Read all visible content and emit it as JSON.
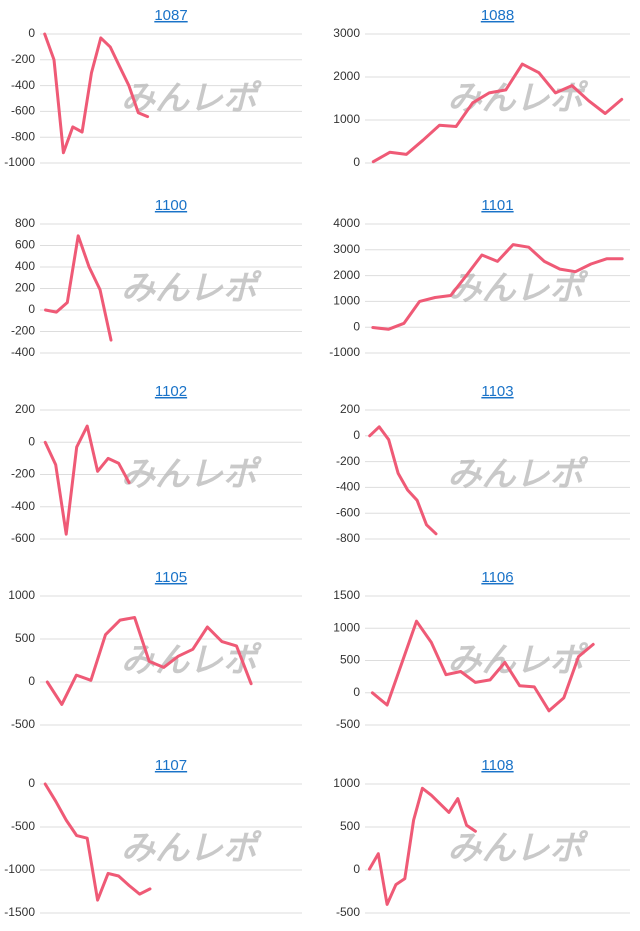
{
  "chart_data": [
    {
      "type": "line",
      "title": "1087",
      "watermark": "みんレポ",
      "color": "#ef5a76",
      "grid": true,
      "ylim": [
        -1000,
        0
      ],
      "yticks": [
        0,
        -200,
        -400,
        -600,
        -800,
        -1000
      ],
      "values": [
        0,
        -200,
        -920,
        -720,
        -760,
        -300,
        -30,
        -100,
        -250,
        -400,
        -610,
        -640,
        null,
        null,
        null,
        null,
        null,
        null,
        null,
        null,
        null,
        null,
        null,
        null,
        null,
        null,
        null,
        null
      ]
    },
    {
      "type": "line",
      "title": "1088",
      "watermark": "みんレポ",
      "color": "#ef5a76",
      "grid": true,
      "ylim": [
        0,
        3000
      ],
      "yticks": [
        0,
        1000,
        2000,
        3000
      ],
      "values": [
        30,
        250,
        200,
        530,
        880,
        850,
        1400,
        1630,
        1700,
        2300,
        2100,
        1630,
        1800,
        1450,
        1150,
        1480
      ]
    },
    {
      "type": "line",
      "title": "1100",
      "watermark": "みんレポ",
      "color": "#ef5a76",
      "grid": true,
      "ylim": [
        -400,
        800
      ],
      "yticks": [
        800,
        600,
        400,
        200,
        0,
        -200,
        -400
      ],
      "values": [
        0,
        -20,
        70,
        690,
        400,
        190,
        -280,
        null,
        null,
        null,
        null,
        null,
        null,
        null,
        null,
        null,
        null,
        null,
        null,
        null,
        null,
        null,
        null,
        null
      ]
    },
    {
      "type": "line",
      "title": "1101",
      "watermark": "みんレポ",
      "color": "#ef5a76",
      "grid": true,
      "ylim": [
        -1000,
        4000
      ],
      "yticks": [
        4000,
        3000,
        2000,
        1000,
        0,
        -1000
      ],
      "values": [
        -10,
        -80,
        150,
        1000,
        1150,
        1230,
        2000,
        2800,
        2550,
        3200,
        3100,
        2550,
        2250,
        2150,
        2450,
        2650,
        2650
      ]
    },
    {
      "type": "line",
      "title": "1102",
      "watermark": "みんレポ",
      "color": "#ef5a76",
      "grid": true,
      "ylim": [
        -600,
        200
      ],
      "yticks": [
        200,
        0,
        -200,
        -400,
        -600
      ],
      "values": [
        0,
        -140,
        -570,
        -30,
        100,
        -180,
        -100,
        -130,
        -250,
        null,
        null,
        null,
        null,
        null,
        null,
        null,
        null,
        null,
        null,
        null,
        null,
        null,
        null,
        null,
        null
      ]
    },
    {
      "type": "line",
      "title": "1103",
      "watermark": "みんレポ",
      "color": "#ef5a76",
      "grid": true,
      "ylim": [
        -800,
        200
      ],
      "yticks": [
        200,
        0,
        -200,
        -400,
        -600,
        -800
      ],
      "values": [
        0,
        70,
        -30,
        -290,
        -420,
        -500,
        -690,
        -760,
        null,
        null,
        null,
        null,
        null,
        null,
        null,
        null,
        null,
        null,
        null,
        null,
        null,
        null,
        null,
        null,
        null,
        null,
        null,
        null
      ]
    },
    {
      "type": "line",
      "title": "1105",
      "watermark": "みんレポ",
      "color": "#ef5a76",
      "grid": true,
      "ylim": [
        -500,
        1000
      ],
      "yticks": [
        1000,
        500,
        0,
        -500
      ],
      "values": [
        0,
        -260,
        80,
        20,
        550,
        720,
        750,
        240,
        170,
        300,
        380,
        640,
        470,
        420,
        -20,
        null,
        null,
        null
      ]
    },
    {
      "type": "line",
      "title": "1106",
      "watermark": "みんレポ",
      "color": "#ef5a76",
      "grid": true,
      "ylim": [
        -500,
        1500
      ],
      "yticks": [
        1500,
        1000,
        500,
        0,
        -500
      ],
      "values": [
        0,
        -190,
        460,
        1110,
        780,
        280,
        330,
        160,
        200,
        470,
        110,
        90,
        -280,
        -80,
        560,
        750,
        null,
        null
      ]
    },
    {
      "type": "line",
      "title": "1107",
      "watermark": "みんレポ",
      "color": "#ef5a76",
      "grid": true,
      "ylim": [
        -1500,
        0
      ],
      "yticks": [
        0,
        -500,
        -1000,
        -1500
      ],
      "values": [
        0,
        -200,
        -420,
        -600,
        -630,
        -1350,
        -1040,
        -1070,
        -1180,
        -1280,
        -1220,
        null,
        null,
        null,
        null,
        null,
        null,
        null,
        null,
        null,
        null,
        null,
        null,
        null,
        null
      ]
    },
    {
      "type": "line",
      "title": "1108",
      "watermark": "みんレポ",
      "color": "#ef5a76",
      "grid": true,
      "ylim": [
        -500,
        1000
      ],
      "yticks": [
        1000,
        500,
        0,
        -500
      ],
      "values": [
        10,
        190,
        -400,
        -170,
        -100,
        580,
        950,
        870,
        770,
        670,
        830,
        520,
        450,
        null,
        null,
        null,
        null,
        null,
        null,
        null,
        null,
        null,
        null,
        null,
        null,
        null,
        null,
        null,
        null,
        null
      ]
    }
  ]
}
